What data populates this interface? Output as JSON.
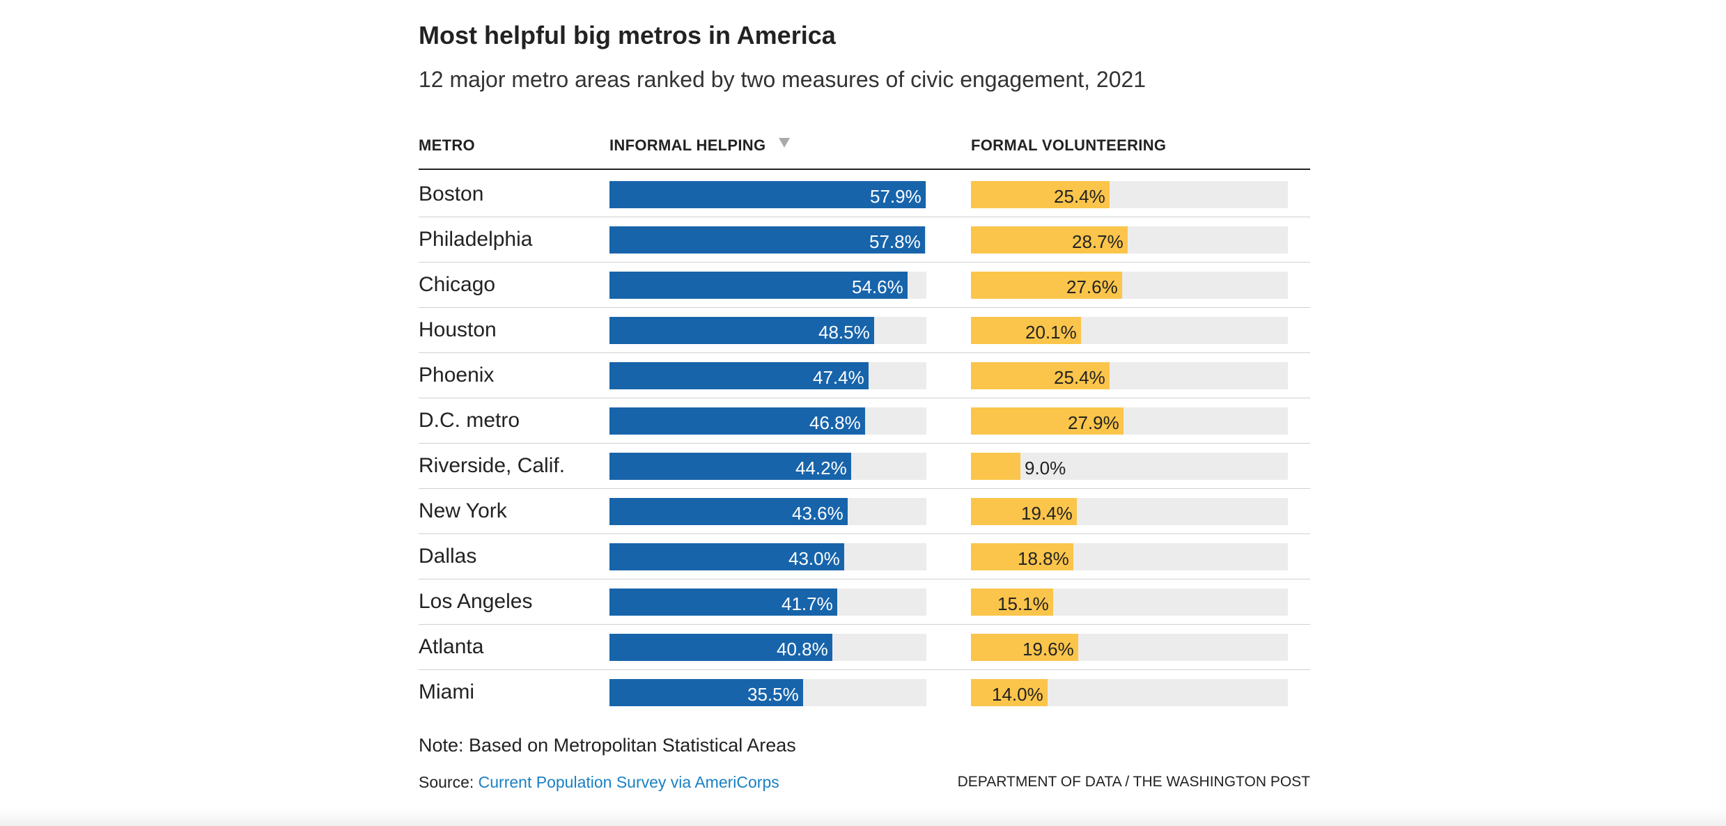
{
  "title": "Most helpful big metros in America",
  "subtitle": "12 major metro areas ranked by two measures of civic engagement, 2021",
  "columns": {
    "metro": "METRO",
    "informal": "INFORMAL HELPING",
    "formal": "FORMAL VOLUNTEERING"
  },
  "sort": {
    "column": "informal",
    "direction": "descending",
    "icon": "sort-down-triangle-icon"
  },
  "colors": {
    "informal": "#1764ab",
    "formal": "#fbc54b",
    "track": "#ececec",
    "link": "#1a80c4"
  },
  "chart_data": {
    "type": "bar",
    "title": "Most helpful big metros in America",
    "subtitle": "12 major metro areas ranked by two measures of civic engagement, 2021",
    "categories": [
      "Boston",
      "Philadelphia",
      "Chicago",
      "Houston",
      "Phoenix",
      "D.C. metro",
      "Riverside, Calif.",
      "New York",
      "Dallas",
      "Los Angeles",
      "Atlanta",
      "Miami"
    ],
    "series": [
      {
        "name": "INFORMAL HELPING",
        "values": [
          57.9,
          57.8,
          54.6,
          48.5,
          47.4,
          46.8,
          44.2,
          43.6,
          43.0,
          41.7,
          40.8,
          35.5
        ],
        "labels": [
          "57.9%",
          "57.8%",
          "54.6%",
          "48.5%",
          "47.4%",
          "46.8%",
          "44.2%",
          "43.6%",
          "43.0%",
          "41.7%",
          "40.8%",
          "35.5%"
        ]
      },
      {
        "name": "FORMAL VOLUNTEERING",
        "values": [
          25.4,
          28.7,
          27.6,
          20.1,
          25.4,
          27.9,
          9.0,
          19.4,
          18.8,
          15.1,
          19.6,
          14.0
        ],
        "labels": [
          "25.4%",
          "28.7%",
          "27.6%",
          "20.1%",
          "25.4%",
          "27.9%",
          "9.0%",
          "19.4%",
          "18.8%",
          "15.1%",
          "19.6%",
          "14.0%"
        ]
      }
    ],
    "xlim": [
      0,
      58
    ],
    "orientation": "horizontal",
    "grid": false
  },
  "footer": {
    "note": "Note: Based on Metropolitan Statistical Areas",
    "source_prefix": "Source: ",
    "source_link": "Current Population Survey via AmeriCorps",
    "credit": "DEPARTMENT OF DATA / THE WASHINGTON POST"
  }
}
